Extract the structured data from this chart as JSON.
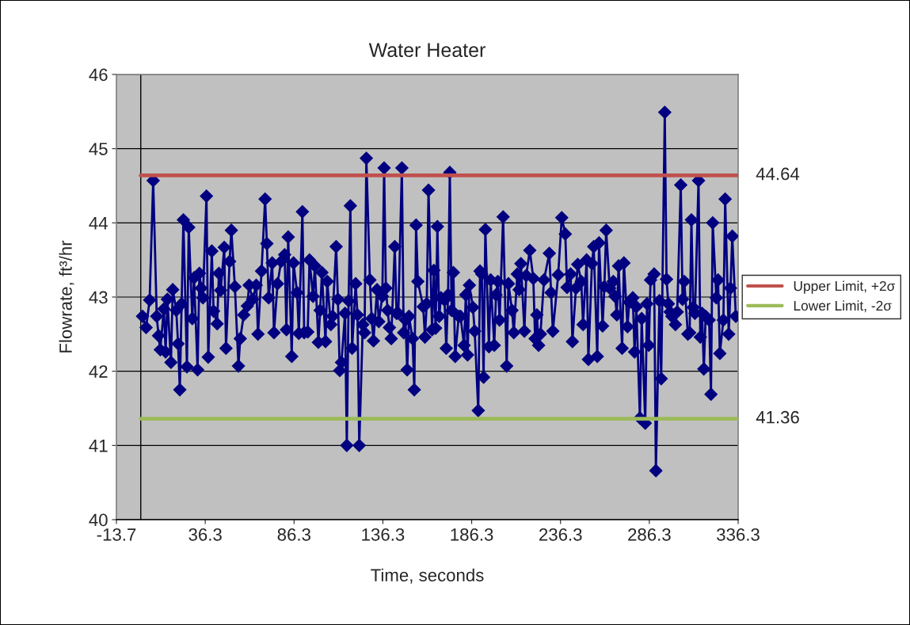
{
  "chart_data": {
    "type": "line",
    "title": "Water Heater",
    "xlabel": "Time, seconds",
    "ylabel": "Flowrate, ft³/hr",
    "xlim": [
      -13.7,
      336.3
    ],
    "xticks": [
      -13.7,
      36.3,
      86.3,
      136.3,
      186.3,
      236.3,
      286.3,
      336.3
    ],
    "ylim": [
      40,
      46
    ],
    "yticks": [
      40,
      41,
      42,
      43,
      44,
      45,
      46
    ],
    "grid": "y",
    "legend": "right",
    "marker": "diamond",
    "line_style": "solid",
    "ref_lines": [
      {
        "axis": "x",
        "value": 0,
        "color": "#000000"
      }
    ],
    "annotations": [
      {
        "text": "44.64",
        "x": 336.3,
        "y": 44.64
      },
      {
        "text": "41.36",
        "x": 336.3,
        "y": 41.36
      }
    ],
    "series": [
      {
        "color": "#000080",
        "x": [
          1,
          3,
          5,
          7,
          9,
          10,
          11,
          13,
          14,
          15,
          17,
          18,
          20,
          21,
          22,
          23,
          24,
          26,
          27,
          29,
          30,
          32,
          33,
          34,
          35,
          37,
          38,
          40,
          41,
          43,
          44,
          45,
          47,
          48,
          50,
          51,
          53,
          55,
          56,
          58,
          60,
          61,
          63,
          65,
          66,
          68,
          70,
          71,
          72,
          74,
          75,
          77,
          79,
          81,
          82,
          83,
          85,
          86,
          88,
          89,
          91,
          92,
          94,
          95,
          97,
          98,
          100,
          101,
          102,
          104,
          105,
          107,
          108,
          110,
          111,
          112,
          113,
          115,
          116,
          117,
          118,
          119,
          121,
          122,
          123,
          125,
          126,
          127,
          129,
          130,
          131,
          133,
          134,
          136,
          137,
          138,
          139,
          140,
          141,
          143,
          144,
          145,
          147,
          148,
          149,
          150,
          151,
          153,
          154,
          155,
          156,
          159,
          160,
          161,
          162,
          164,
          165,
          166,
          167,
          168,
          169,
          171,
          172,
          173,
          174,
          175,
          176,
          177,
          179,
          180,
          182,
          183,
          184,
          185,
          187,
          188,
          190,
          191,
          192,
          193,
          194,
          196,
          197,
          199,
          200,
          201,
          202,
          204,
          206,
          207,
          209,
          210,
          212,
          213,
          214,
          216,
          217,
          219,
          221,
          222,
          223,
          224,
          225,
          227,
          230,
          231,
          232,
          235,
          237,
          239,
          240,
          242,
          243,
          245,
          246,
          248,
          249,
          251,
          252,
          254,
          255,
          257,
          258,
          260,
          261,
          262,
          264,
          266,
          267,
          268,
          269,
          271,
          272,
          274,
          275,
          277,
          278,
          279,
          281,
          282,
          284,
          285,
          286,
          287,
          289,
          290,
          292,
          293,
          295,
          296,
          297,
          298,
          299,
          301,
          302,
          304,
          305,
          306,
          308,
          309,
          310,
          311,
          312,
          314,
          315,
          316,
          317,
          318,
          320,
          321,
          322,
          324,
          325,
          326,
          328,
          329,
          331,
          332,
          333,
          335
        ],
        "values": [
          42.74,
          42.59,
          42.96,
          44.57,
          42.74,
          42.48,
          42.29,
          42.84,
          42.26,
          42.97,
          42.12,
          43.1,
          42.82,
          42.37,
          41.75,
          42.91,
          44.04,
          42.06,
          43.94,
          42.71,
          43.26,
          42.02,
          43.32,
          43.12,
          42.99,
          44.36,
          42.19,
          43.62,
          42.81,
          42.64,
          43.32,
          43.09,
          43.67,
          42.31,
          43.48,
          43.9,
          43.14,
          42.07,
          42.44,
          42.76,
          42.88,
          43.16,
          42.97,
          43.16,
          42.5,
          43.35,
          44.32,
          43.72,
          42.99,
          43.46,
          42.52,
          43.18,
          43.48,
          43.57,
          42.56,
          43.81,
          42.2,
          43.46,
          43.06,
          42.51,
          44.15,
          42.52,
          42.53,
          43.5,
          43.01,
          43.42,
          42.39,
          42.82,
          43.33,
          42.4,
          43.21,
          42.63,
          42.74,
          43.68,
          42.97,
          42.01,
          42.12,
          42.78,
          41.0,
          42.95,
          44.23,
          42.31,
          43.18,
          42.76,
          41.0,
          42.63,
          42.52,
          44.87,
          43.23,
          42.71,
          42.41,
          43.1,
          42.67,
          43.01,
          44.74,
          43.12,
          42.82,
          42.59,
          42.44,
          43.68,
          42.78,
          42.78,
          44.74,
          42.52,
          42.69,
          42.02,
          42.74,
          42.44,
          41.75,
          43.97,
          43.21,
          42.87,
          42.46,
          42.91,
          44.44,
          42.56,
          43.36,
          42.58,
          43.95,
          42.74,
          42.99,
          42.96,
          42.31,
          43.03,
          44.68,
          42.82,
          43.33,
          42.2,
          42.74,
          42.74,
          42.35,
          43.03,
          42.22,
          43.16,
          42.86,
          42.54,
          41.47,
          43.35,
          43.31,
          41.92,
          43.91,
          42.33,
          43.23,
          42.35,
          43.03,
          43.21,
          42.69,
          44.08,
          42.07,
          43.18,
          42.82,
          42.52,
          43.31,
          43.1,
          43.45,
          42.54,
          43.29,
          43.63,
          43.25,
          42.44,
          42.76,
          42.35,
          42.5,
          43.23,
          43.59,
          43.06,
          42.54,
          43.3,
          44.07,
          43.85,
          43.13,
          43.31,
          42.4,
          43.12,
          43.44,
          43.21,
          42.63,
          43.5,
          42.16,
          43.45,
          43.68,
          42.2,
          43.73,
          42.61,
          43.14,
          43.9,
          43.12,
          43.21,
          43.01,
          42.76,
          43.42,
          42.31,
          43.46,
          42.6,
          42.93,
          42.99,
          42.26,
          42.87,
          41.37,
          42.71,
          41.3,
          42.91,
          42.35,
          43.23,
          43.31,
          40.66,
          42.95,
          41.9,
          45.49,
          43.24,
          42.91,
          42.8,
          42.74,
          42.63,
          42.8,
          44.51,
          42.97,
          43.21,
          42.5,
          42.52,
          44.04,
          42.86,
          42.78,
          44.57,
          42.46,
          42.78,
          42.03,
          42.74,
          42.69,
          41.69,
          44.0,
          42.99,
          43.23,
          42.24,
          42.69,
          44.32,
          42.5,
          43.12,
          43.82,
          42.74
        ]
      },
      {
        "name": "Upper Limit, +2σ",
        "color": "#c0504d",
        "marker": "none",
        "x": [
          0,
          336.3
        ],
        "values": [
          44.64,
          44.64
        ]
      },
      {
        "name": "Lower Limit, -2σ",
        "color": "#9bbb59",
        "marker": "none",
        "x": [
          0,
          336.3
        ],
        "values": [
          41.36,
          41.36
        ]
      }
    ]
  }
}
